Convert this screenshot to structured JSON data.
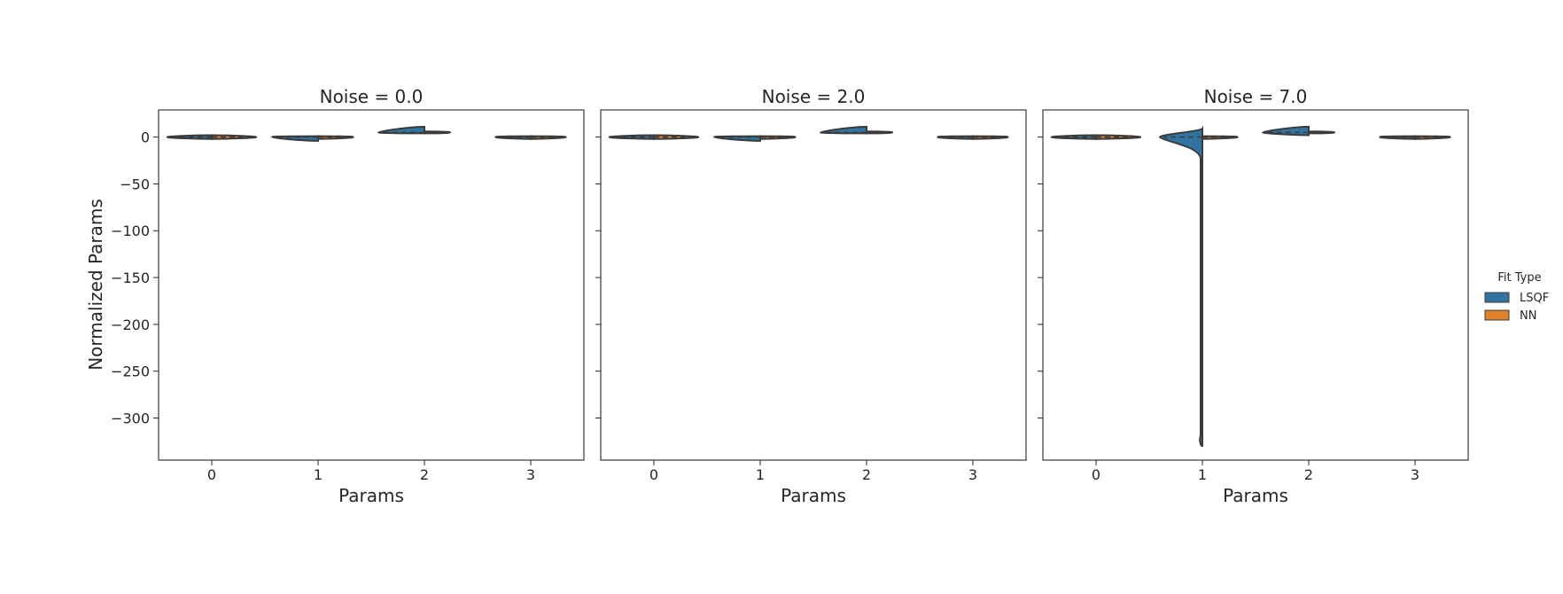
{
  "chart_data": {
    "type": "violin",
    "ylabel": "Normalized Params",
    "ylim": [
      -345,
      29
    ],
    "yticks": [
      0,
      -50,
      -100,
      -150,
      -200,
      -250,
      -300
    ],
    "ytick_labels": [
      "0",
      "−50",
      "−100",
      "−150",
      "−200",
      "−250",
      "−300"
    ],
    "legend": {
      "title": "Fit Type",
      "position": "right",
      "entries": [
        {
          "name": "LSQF",
          "color": "#3274a1"
        },
        {
          "name": "NN",
          "color": "#e1812c"
        }
      ]
    },
    "panels": [
      {
        "title": "Noise = 0.0",
        "xlabel": "Params",
        "categories": [
          "0",
          "1",
          "2",
          "3"
        ],
        "series": [
          {
            "name": "LSQF",
            "min": [
              -2,
              -4,
              4,
              -2
            ],
            "max": [
              2,
              1,
              11,
              1
            ],
            "median": [
              0,
              0,
              5,
              0
            ]
          },
          {
            "name": "NN",
            "min": [
              -2,
              -2,
              4,
              -2
            ],
            "max": [
              2,
              1,
              6,
              1
            ],
            "median": [
              0,
              0,
              5,
              0
            ]
          }
        ]
      },
      {
        "title": "Noise = 2.0",
        "xlabel": "Params",
        "categories": [
          "0",
          "1",
          "2",
          "3"
        ],
        "series": [
          {
            "name": "LSQF",
            "min": [
              -2,
              -4,
              4,
              -2
            ],
            "max": [
              2,
              1,
              11,
              1
            ],
            "median": [
              0,
              0,
              5,
              0
            ]
          },
          {
            "name": "NN",
            "min": [
              -2,
              -2,
              4,
              -2
            ],
            "max": [
              2,
              1,
              6,
              1
            ],
            "median": [
              0,
              0,
              5,
              0
            ]
          }
        ]
      },
      {
        "title": "Noise = 7.0",
        "xlabel": "Params",
        "categories": [
          "0",
          "1",
          "2",
          "3"
        ],
        "series": [
          {
            "name": "LSQF",
            "min": [
              -2,
              -330,
              2,
              -2
            ],
            "max": [
              2,
              9,
              11,
              1
            ],
            "median": [
              0,
              0,
              5,
              0
            ]
          },
          {
            "name": "NN",
            "min": [
              -2,
              -2,
              4,
              -2
            ],
            "max": [
              2,
              1,
              6,
              1
            ],
            "median": [
              0,
              0,
              5,
              0
            ]
          }
        ]
      }
    ]
  }
}
